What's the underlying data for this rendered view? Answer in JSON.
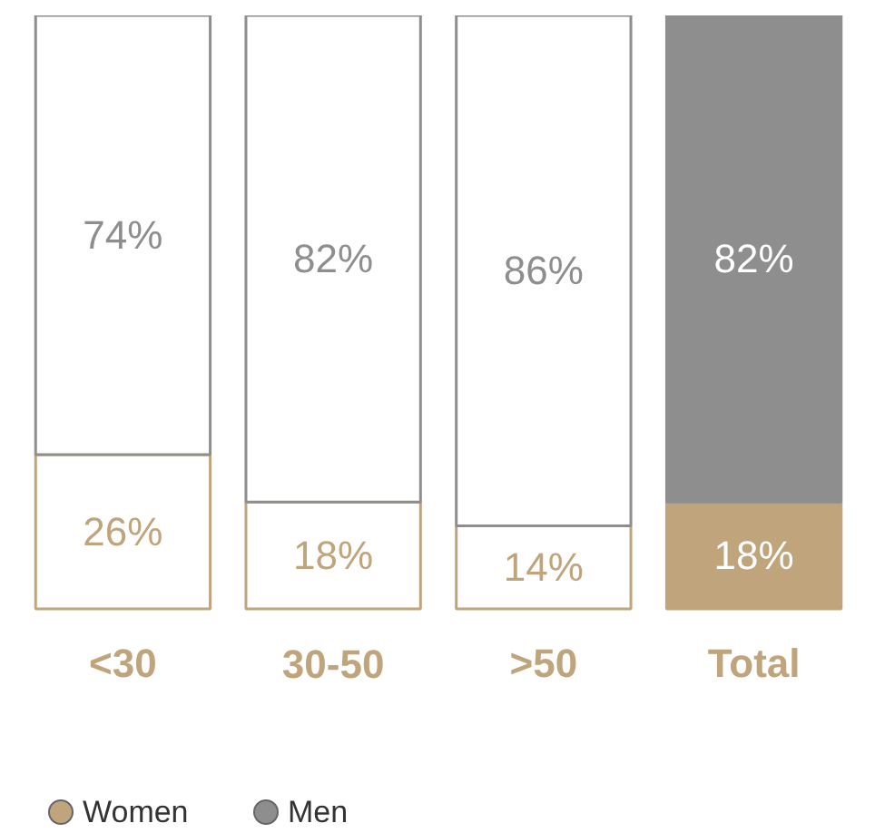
{
  "chart_data": {
    "type": "bar",
    "stacked": true,
    "legend": "bottom left",
    "categories": [
      "<30",
      "30-50",
      ">50",
      "Total"
    ],
    "series": [
      {
        "name": "Women",
        "color": "#c0a57c",
        "colors": [
          "#ffffff",
          "#ffffff",
          "#ffffff",
          "#c0a57c"
        ],
        "values": [
          26,
          18,
          14,
          18
        ],
        "value_labels": [
          "26%",
          "18%",
          "14%",
          "18%"
        ]
      },
      {
        "name": "Men",
        "color": "#8e8e8e",
        "colors": [
          "#ffffff",
          "#ffffff",
          "#ffffff",
          "#8e8e8e"
        ],
        "values": [
          74,
          82,
          86,
          82
        ],
        "value_labels": [
          "74%",
          "82%",
          "86%",
          "82%"
        ]
      }
    ]
  }
}
